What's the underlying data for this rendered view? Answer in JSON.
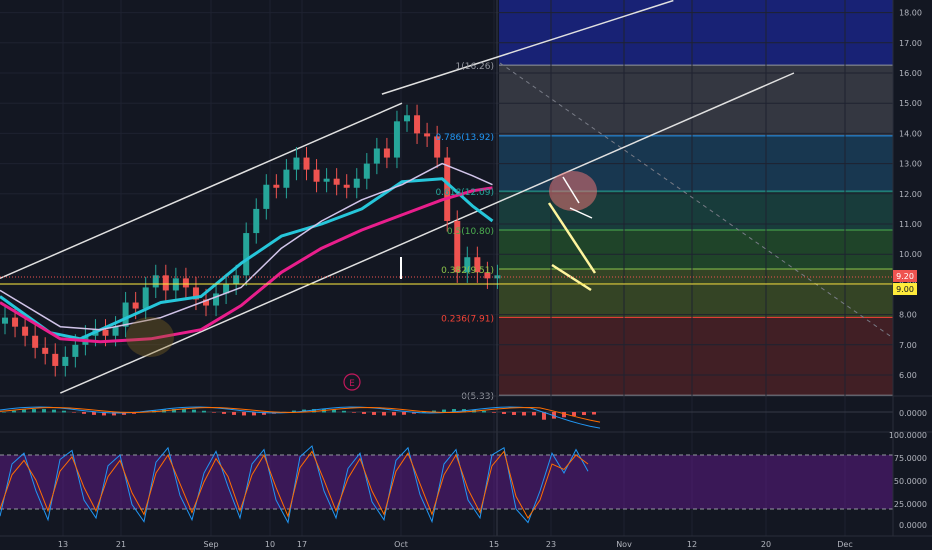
{
  "chart_data": {
    "type": "candlestick",
    "title": "",
    "x_ticks": [
      "13",
      "21",
      "Sep",
      "10",
      "17",
      "Oct",
      "15",
      "23",
      "Nov",
      "12",
      "20",
      "Dec"
    ],
    "price_axis": {
      "ylim": [
        5.3,
        18.4
      ],
      "ticks": [
        "18.00",
        "17.00",
        "16.00",
        "15.00",
        "14.00",
        "13.00",
        "12.00",
        "11.00",
        "10.00",
        "9.00",
        "8.00",
        "7.00",
        "6.00"
      ]
    },
    "price_badges": [
      {
        "value": "9.20",
        "color": "#ef5350"
      },
      {
        "value": "9.00",
        "color": "#ffeb3b"
      }
    ],
    "fibonacci": {
      "levels": [
        {
          "ratio": 1,
          "price": 16.26,
          "label": "1(16.26)",
          "color": "#9598a1"
        },
        {
          "ratio": 0.786,
          "price": 13.92,
          "label": "0.786(13.92)",
          "color": "#2196f3"
        },
        {
          "ratio": 0.618,
          "price": 12.09,
          "label": "0.618(12.09)",
          "color": "#26a69a"
        },
        {
          "ratio": 0.5,
          "price": 10.8,
          "label": "0.5(10.80)",
          "color": "#4caf50"
        },
        {
          "ratio": 0.382,
          "price": 9.51,
          "label": "0.382(9.51)",
          "color": "#8bc34a"
        },
        {
          "ratio": 0.236,
          "price": 7.91,
          "label": "0.236(7.91)",
          "color": "#f44336"
        },
        {
          "ratio": 0,
          "price": 5.33,
          "label": "0(5.33)",
          "color": "#9598a1"
        }
      ]
    },
    "series": [
      {
        "values": [
          [
            0,
            7.9
          ],
          [
            1,
            7.6
          ],
          [
            2,
            7.3
          ],
          [
            3,
            6.9
          ],
          [
            4,
            6.7
          ],
          [
            5,
            6.3
          ],
          [
            6,
            6.6
          ],
          [
            7,
            7.0
          ],
          [
            8,
            7.3
          ],
          [
            9,
            7.5
          ],
          [
            10,
            7.3
          ],
          [
            11,
            7.6
          ],
          [
            12,
            8.4
          ],
          [
            13,
            8.2
          ],
          [
            14,
            8.9
          ],
          [
            15,
            9.3
          ],
          [
            16,
            8.8
          ],
          [
            17,
            9.2
          ],
          [
            18,
            8.9
          ],
          [
            19,
            8.5
          ],
          [
            20,
            8.3
          ],
          [
            21,
            8.7
          ],
          [
            22,
            9.0
          ],
          [
            23,
            9.3
          ],
          [
            24,
            10.7
          ],
          [
            25,
            11.5
          ],
          [
            26,
            12.3
          ],
          [
            27,
            12.2
          ],
          [
            28,
            12.8
          ],
          [
            29,
            13.2
          ],
          [
            30,
            12.8
          ],
          [
            31,
            12.4
          ],
          [
            32,
            12.5
          ],
          [
            33,
            12.3
          ],
          [
            34,
            12.2
          ],
          [
            35,
            12.5
          ],
          [
            36,
            13.0
          ],
          [
            37,
            13.5
          ],
          [
            38,
            13.2
          ],
          [
            39,
            14.4
          ],
          [
            40,
            14.6
          ],
          [
            41,
            14.0
          ],
          [
            42,
            13.9
          ],
          [
            43,
            13.2
          ],
          [
            44,
            11.1
          ],
          [
            45,
            9.4
          ],
          [
            46,
            9.9
          ],
          [
            47,
            9.4
          ],
          [
            48,
            9.2
          ],
          [
            49,
            9.3
          ]
        ],
        "color": "#26a69a"
      },
      {
        "values": [
          [
            0,
            8.6
          ],
          [
            5,
            7.4
          ],
          [
            8,
            7.2
          ],
          [
            12,
            7.8
          ],
          [
            16,
            8.4
          ],
          [
            20,
            8.6
          ],
          [
            24,
            9.7
          ],
          [
            28,
            10.6
          ],
          [
            32,
            11.0
          ],
          [
            36,
            11.5
          ],
          [
            40,
            12.4
          ],
          [
            44,
            12.5
          ],
          [
            47,
            11.6
          ],
          [
            49,
            11.1
          ]
        ],
        "color": "#26c6da"
      },
      {
        "values": [
          [
            0,
            8.8
          ],
          [
            6,
            7.6
          ],
          [
            10,
            7.5
          ],
          [
            16,
            7.9
          ],
          [
            20,
            8.4
          ],
          [
            24,
            8.9
          ],
          [
            28,
            10.2
          ],
          [
            32,
            11.1
          ],
          [
            36,
            11.8
          ],
          [
            40,
            12.3
          ],
          [
            44,
            13.0
          ],
          [
            47,
            12.6
          ],
          [
            49,
            12.3
          ]
        ],
        "color": "#d1c4e9"
      },
      {
        "values": [
          [
            0,
            8.4
          ],
          [
            6,
            7.2
          ],
          [
            10,
            7.1
          ],
          [
            15,
            7.2
          ],
          [
            20,
            7.5
          ],
          [
            24,
            8.3
          ],
          [
            28,
            9.4
          ],
          [
            32,
            10.2
          ],
          [
            36,
            10.8
          ],
          [
            40,
            11.3
          ],
          [
            44,
            11.8
          ],
          [
            47,
            12.1
          ],
          [
            49,
            12.2
          ]
        ],
        "color": "#e91e8c"
      }
    ],
    "channel_lines": [
      {
        "from": [
          0,
          9.2
        ],
        "to": [
          40,
          15.0
        ]
      },
      {
        "from": [
          6,
          5.4
        ],
        "to": [
          79,
          16.0
        ]
      },
      {
        "from": [
          38,
          15.3
        ],
        "to": [
          67,
          18.4
        ]
      }
    ],
    "macd_axis": {
      "ticks": [
        "0.0000"
      ]
    },
    "stochastic_axis": {
      "ticks": [
        "100.0000",
        "75.0000",
        "50.0000",
        "25.0000",
        "0.0000"
      ]
    },
    "stochastic_k": [
      12,
      70,
      82,
      40,
      8,
      75,
      85,
      30,
      10,
      68,
      80,
      25,
      6,
      72,
      88,
      35,
      8,
      60,
      84,
      45,
      10,
      70,
      86,
      30,
      5,
      78,
      90,
      40,
      10,
      65,
      82,
      28,
      8,
      74,
      88,
      36,
      6,
      70,
      86,
      30,
      10,
      80,
      88,
      20,
      5,
      40,
      82,
      60,
      86,
      62
    ],
    "stochastic_d": [
      20,
      58,
      74,
      52,
      18,
      62,
      78,
      44,
      18,
      56,
      74,
      38,
      14,
      60,
      80,
      48,
      16,
      50,
      76,
      56,
      18,
      58,
      80,
      44,
      12,
      66,
      84,
      52,
      18,
      54,
      76,
      40,
      14,
      62,
      82,
      48,
      14,
      58,
      80,
      42,
      16,
      68,
      84,
      34,
      10,
      30,
      70,
      64,
      80,
      70
    ]
  },
  "annotations": {
    "earnings_marker": "E"
  },
  "colors": {
    "background": "#131722",
    "grid": "#1e2230",
    "up": "#26a69a",
    "down": "#ef5350"
  }
}
